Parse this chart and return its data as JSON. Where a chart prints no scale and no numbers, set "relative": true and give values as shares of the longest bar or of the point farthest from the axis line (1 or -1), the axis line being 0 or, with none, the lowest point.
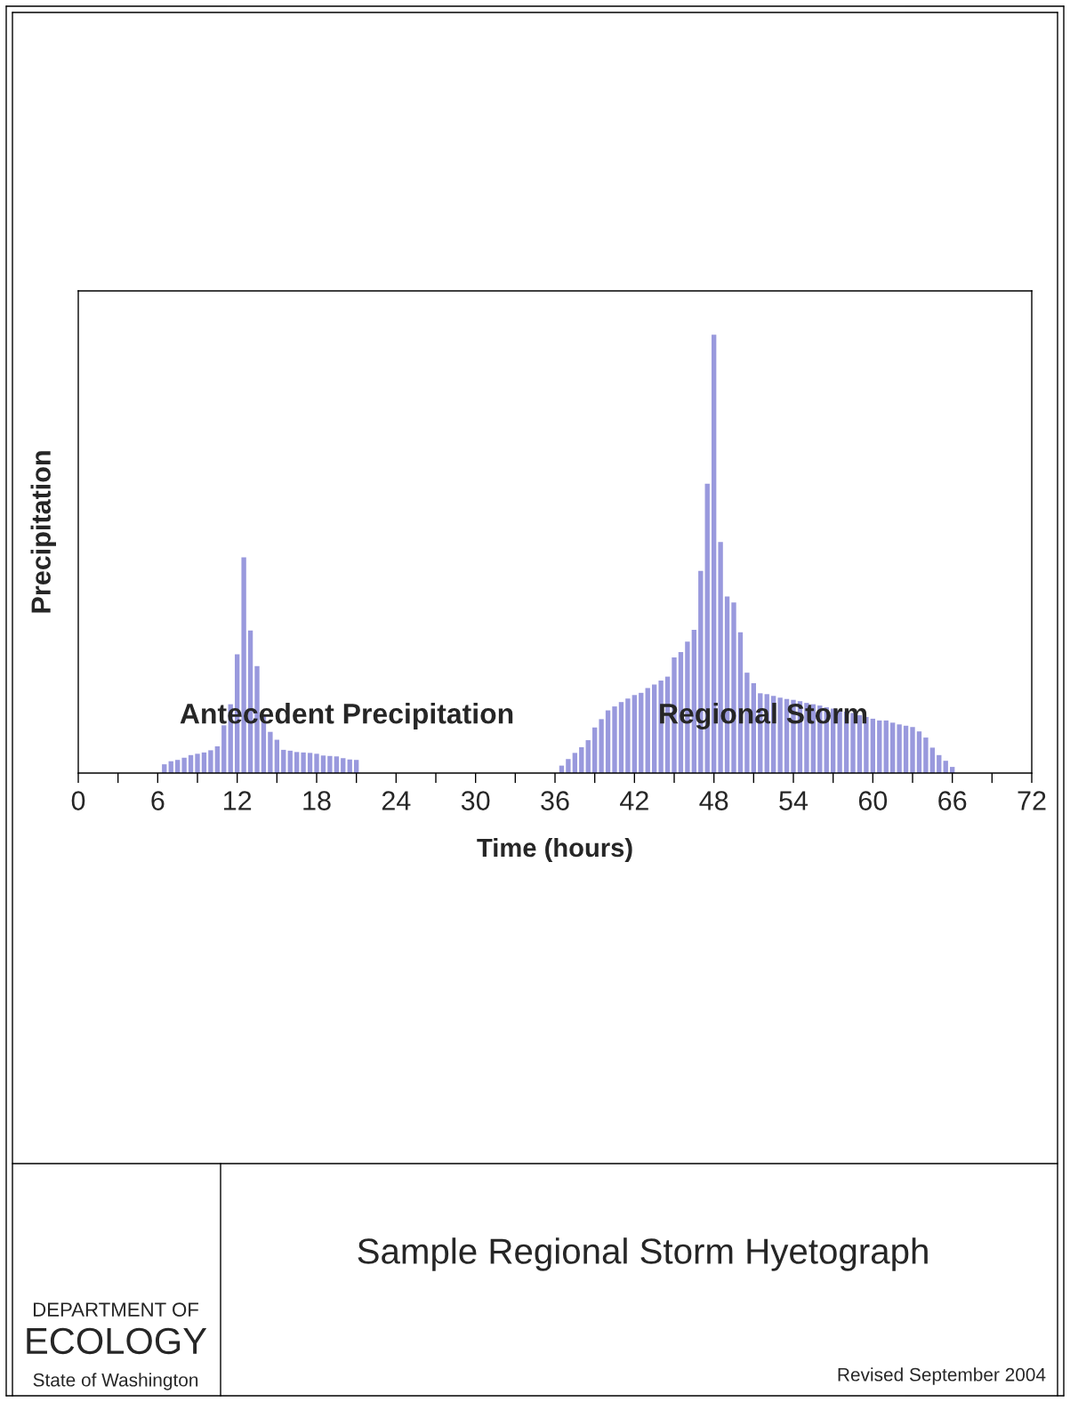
{
  "chart_data": {
    "type": "bar",
    "title": "Sample Regional Storm Hyetograph",
    "xlabel": "Time (hours)",
    "ylabel": "Precipitation",
    "relative": true,
    "color": "#9999dd",
    "x": [
      6.5,
      7,
      7.5,
      8,
      8.5,
      9,
      9.5,
      10,
      10.5,
      11,
      11.5,
      12,
      12.5,
      13,
      13.5,
      14,
      14.5,
      15,
      15.5,
      16,
      16.5,
      17,
      17.5,
      18,
      18.5,
      19,
      19.5,
      20,
      20.5,
      21,
      36.5,
      37,
      37.5,
      38,
      38.5,
      39,
      39.5,
      40,
      40.5,
      41,
      41.5,
      42,
      42.5,
      43,
      43.5,
      44,
      44.5,
      45,
      45.5,
      46,
      46.5,
      47,
      47.5,
      48,
      48.5,
      49,
      49.5,
      50,
      50.5,
      51,
      51.5,
      52,
      52.5,
      53,
      53.5,
      54,
      54.5,
      55,
      55.5,
      56,
      56.5,
      57,
      57.5,
      58,
      58.5,
      59,
      59.5,
      60,
      60.5,
      61,
      61.5,
      62,
      62.5,
      63,
      63.5,
      64,
      64.5,
      65,
      65.5,
      66
    ],
    "values": [
      0.02,
      0.027,
      0.03,
      0.035,
      0.041,
      0.044,
      0.047,
      0.052,
      0.061,
      0.109,
      0.157,
      0.271,
      0.492,
      0.325,
      0.244,
      0.13,
      0.094,
      0.076,
      0.053,
      0.051,
      0.048,
      0.047,
      0.046,
      0.044,
      0.04,
      0.039,
      0.038,
      0.034,
      0.031,
      0.03,
      0.017,
      0.032,
      0.046,
      0.059,
      0.075,
      0.104,
      0.123,
      0.143,
      0.152,
      0.162,
      0.17,
      0.178,
      0.183,
      0.194,
      0.202,
      0.211,
      0.22,
      0.264,
      0.276,
      0.3,
      0.327,
      0.461,
      0.66,
      1,
      0.527,
      0.403,
      0.389,
      0.321,
      0.229,
      0.205,
      0.182,
      0.18,
      0.176,
      0.172,
      0.169,
      0.167,
      0.164,
      0.16,
      0.157,
      0.154,
      0.15,
      0.147,
      0.143,
      0.14,
      0.137,
      0.132,
      0.128,
      0.124,
      0.12,
      0.12,
      0.115,
      0.111,
      0.108,
      0.105,
      0.095,
      0.081,
      0.058,
      0.041,
      0.028,
      0.014
    ],
    "xlim": [
      0,
      72
    ],
    "xticks": [
      0,
      {
        "value": 3,
        "label": null
      },
      6,
      {
        "value": 9,
        "label": null
      },
      12,
      {
        "value": 15,
        "label": null
      },
      18,
      {
        "value": 21,
        "label": null
      },
      24,
      {
        "value": 27,
        "label": null
      },
      30,
      {
        "value": 33,
        "label": null
      },
      36,
      {
        "value": 39,
        "label": null
      },
      42,
      {
        "value": 45,
        "label": null
      },
      48,
      {
        "value": 51,
        "label": null
      },
      54,
      {
        "value": 57,
        "label": null
      },
      60,
      {
        "value": 63,
        "label": null
      },
      66,
      {
        "value": 69,
        "label": null
      },
      72
    ],
    "grid": false,
    "annotations": [
      "Antecedent Precipitation",
      "Regional Storm",
      "Revised September 2004",
      "DEPARTMENT OF",
      "ECOLOGY",
      "State of Washington"
    ]
  }
}
